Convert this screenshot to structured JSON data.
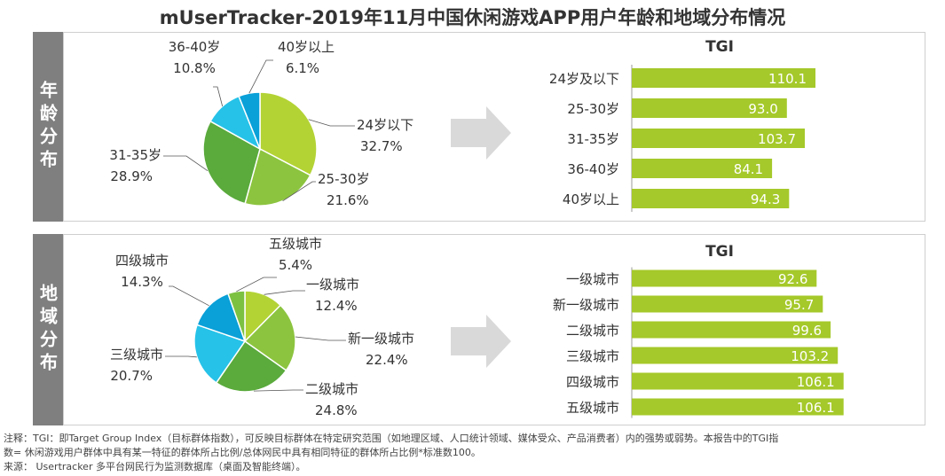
{
  "title": "mUserTracker-2019年11月中国休闲游戏APP用户年龄和地域分布情况",
  "sections": [
    {
      "side_label": "年龄分布",
      "tgi_title": "TGI"
    },
    {
      "side_label": "地域分布",
      "tgi_title": "TGI"
    }
  ],
  "colors": {
    "tgi_bar": "#a5c92a",
    "arrow": "#d9d9d9",
    "side_tab": "#7f7f7f"
  },
  "chart_data": [
    {
      "type": "pie",
      "title": "年龄分布",
      "slices": [
        {
          "label": "24岁以下",
          "value": 32.7,
          "value_label": "32.7%",
          "color": "#b3d335"
        },
        {
          "label": "25-30岁",
          "value": 21.6,
          "value_label": "21.6%",
          "color": "#8cc43f"
        },
        {
          "label": "31-35岁",
          "value": 28.9,
          "value_label": "28.9%",
          "color": "#5aaa3c"
        },
        {
          "label": "36-40岁",
          "value": 10.8,
          "value_label": "10.8%",
          "color": "#26c2e8"
        },
        {
          "label": "40岁以上",
          "value": 6.1,
          "value_label": "6.1%",
          "color": "#0aa0d8"
        }
      ]
    },
    {
      "type": "bar",
      "title": "TGI",
      "categories": [
        "24岁及以下",
        "25-30岁",
        "31-35岁",
        "36-40岁",
        "40岁以上"
      ],
      "values": [
        110.1,
        93.0,
        103.7,
        84.1,
        94.3
      ],
      "value_labels": [
        "110.1",
        "93.0",
        "103.7",
        "84.1",
        "94.3"
      ]
    },
    {
      "type": "pie",
      "title": "地域分布",
      "slices": [
        {
          "label": "一级城市",
          "value": 12.4,
          "value_label": "12.4%",
          "color": "#b3d335"
        },
        {
          "label": "新一级城市",
          "value": 22.4,
          "value_label": "22.4%",
          "color": "#8cc43f"
        },
        {
          "label": "二级城市",
          "value": 24.8,
          "value_label": "24.8%",
          "color": "#5aaa3c"
        },
        {
          "label": "三级城市",
          "value": 20.7,
          "value_label": "20.7%",
          "color": "#26c2e8"
        },
        {
          "label": "四级城市",
          "value": 14.3,
          "value_label": "14.3%",
          "color": "#0aa0d8"
        },
        {
          "label": "五级城市",
          "value": 5.4,
          "value_label": "5.4%",
          "color": "#7dc142"
        }
      ]
    },
    {
      "type": "bar",
      "title": "TGI",
      "categories": [
        "一级城市",
        "新一级城市",
        "二级城市",
        "三级城市",
        "四级城市",
        "五级城市"
      ],
      "values": [
        92.6,
        95.7,
        99.6,
        103.2,
        106.1,
        106.1
      ],
      "value_labels": [
        "92.6",
        "95.7",
        "99.6",
        "103.2",
        "106.1",
        "106.1"
      ]
    }
  ],
  "footnotes": {
    "line1": "注释：TGI：即Target Group Index（目标群体指数），可反映目标群体在特定研究范围（如地理区域、人口统计领域、媒体受众、产品消费者）内的强势或弱势。本报告中的TGI指",
    "line2": "数= 休闲游戏用户群体中具有某一特征的群体所占比例/总体网民中具有相同特征的群体所占比例*标准数100。",
    "line3": "来源： Usertracker 多平台网民行为监测数据库（桌面及智能终端）。"
  }
}
